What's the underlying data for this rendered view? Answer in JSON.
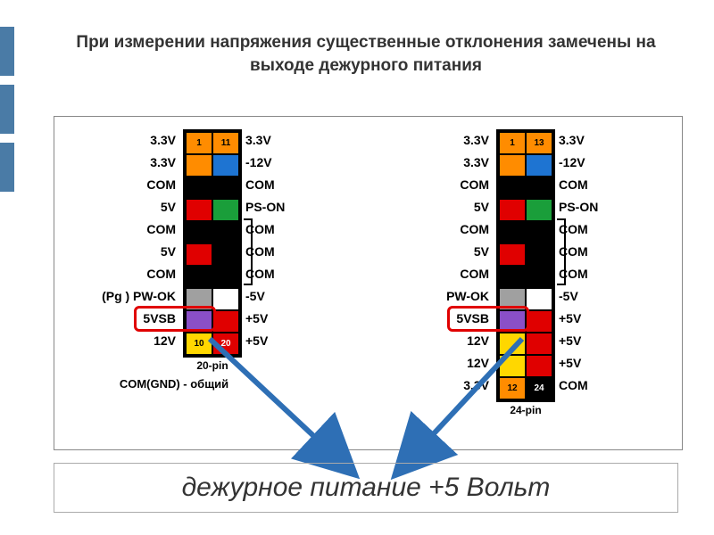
{
  "title": "При измерении напряжения существенные отклонения замечены на выходе дежурного питания",
  "bottom_label": "дежурное питание +5 Вольт",
  "accent_bar_color": "#4a7ba6",
  "connectors": {
    "left": {
      "caption": "20-pin",
      "gnd_note": "COM(GND) - общий",
      "rows": [
        {
          "l": "3.3V",
          "ll": "1",
          "lc": "#ff8c00",
          "rl": "11",
          "rc": "#ff8c00",
          "r": "3.3V"
        },
        {
          "l": "3.3V",
          "ll": "",
          "lc": "#ff8c00",
          "rl": "",
          "rc": "#1e74d2",
          "r": "-12V"
        },
        {
          "l": "COM",
          "ll": "",
          "lc": "#000000",
          "rl": "",
          "rc": "#000000",
          "r": "COM"
        },
        {
          "l": "5V",
          "ll": "",
          "lc": "#e00000",
          "rl": "",
          "rc": "#1a9e3a",
          "r": "PS-ON"
        },
        {
          "l": "COM",
          "ll": "",
          "lc": "#000000",
          "rl": "",
          "rc": "#000000",
          "r": "COM"
        },
        {
          "l": "5V",
          "ll": "",
          "lc": "#e00000",
          "rl": "",
          "rc": "#000000",
          "r": "COM"
        },
        {
          "l": "COM",
          "ll": "",
          "lc": "#000000",
          "rl": "",
          "rc": "#000000",
          "r": "COM"
        },
        {
          "l": "(Pg ) PW-OK",
          "ll": "",
          "lc": "#a0a0a0",
          "rl": "",
          "rc": "#ffffff",
          "r": "-5V"
        },
        {
          "l": "5VSB",
          "ll": "",
          "lc": "#8a4fc7",
          "rl": "",
          "rc": "#e00000",
          "r": "+5V"
        },
        {
          "l": "12V",
          "ll": "10",
          "lc": "#ffd700",
          "rl": "20",
          "rc": "#e00000",
          "r": "+5V"
        }
      ],
      "bracket": {
        "from": 4,
        "to": 6
      },
      "highlight_row": 8
    },
    "right": {
      "caption": "24-pin",
      "rows": [
        {
          "l": "3.3V",
          "ll": "1",
          "lc": "#ff8c00",
          "rl": "13",
          "rc": "#ff8c00",
          "r": "3.3V"
        },
        {
          "l": "3.3V",
          "ll": "",
          "lc": "#ff8c00",
          "rl": "",
          "rc": "#1e74d2",
          "r": "-12V"
        },
        {
          "l": "COM",
          "ll": "",
          "lc": "#000000",
          "rl": "",
          "rc": "#000000",
          "r": "COM"
        },
        {
          "l": "5V",
          "ll": "",
          "lc": "#e00000",
          "rl": "",
          "rc": "#1a9e3a",
          "r": "PS-ON"
        },
        {
          "l": "COM",
          "ll": "",
          "lc": "#000000",
          "rl": "",
          "rc": "#000000",
          "r": "COM"
        },
        {
          "l": "5V",
          "ll": "",
          "lc": "#e00000",
          "rl": "",
          "rc": "#000000",
          "r": "COM"
        },
        {
          "l": "COM",
          "ll": "",
          "lc": "#000000",
          "rl": "",
          "rc": "#000000",
          "r": "COM"
        },
        {
          "l": "PW-OK",
          "ll": "",
          "lc": "#a0a0a0",
          "rl": "",
          "rc": "#ffffff",
          "r": "-5V"
        },
        {
          "l": "5VSB",
          "ll": "",
          "lc": "#8a4fc7",
          "rl": "",
          "rc": "#e00000",
          "r": "+5V"
        },
        {
          "l": "12V",
          "ll": "",
          "lc": "#ffd700",
          "rl": "",
          "rc": "#e00000",
          "r": "+5V"
        },
        {
          "l": "12V",
          "ll": "",
          "lc": "#ffd700",
          "rl": "",
          "rc": "#e00000",
          "r": "+5V"
        },
        {
          "l": "3.3V",
          "ll": "12",
          "lc": "#ff8c00",
          "rl": "24",
          "rc": "#000000",
          "r": "COM"
        }
      ],
      "bracket": {
        "from": 4,
        "to": 6
      },
      "highlight_row": 8
    }
  },
  "arrow_color": "#2e6fb5"
}
